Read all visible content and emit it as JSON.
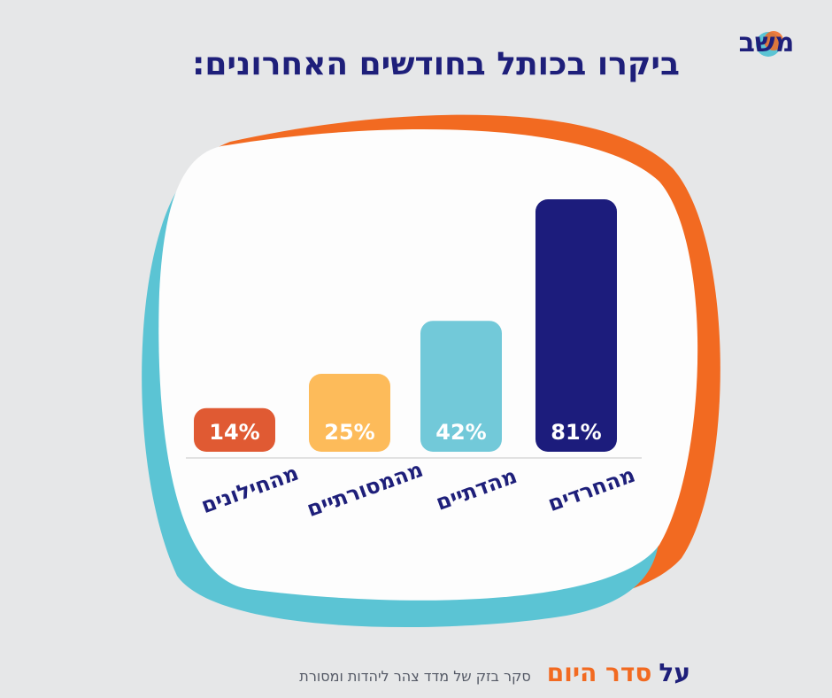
{
  "title": "ביקרו בכותל בחודשים האחרונים:",
  "logo": {
    "text": "משב",
    "colors": {
      "primary": "#1e1f7a",
      "orange": "#f26a21",
      "cyan": "#5bc4d4"
    }
  },
  "footer": {
    "prefix": "על",
    "highlight": "סדר היום",
    "survey": "סקר בזק של מדד צהר ליהדות ומסורת"
  },
  "colors": {
    "background": "#e6e7e8",
    "blob_orange": "#f26a21",
    "blob_cyan": "#5bc4d4",
    "title": "#1e1f7a"
  },
  "chart_data": {
    "type": "bar",
    "title": "ביקרו בכותל בחודשים האחרונים:",
    "xlabel": "",
    "ylabel": "",
    "ylim": [
      0,
      100
    ],
    "categories": [
      "מהחילונים",
      "מהמסורתיים",
      "מהדתיים",
      "מהחרדים"
    ],
    "values": [
      14,
      25,
      42,
      81
    ],
    "value_labels": [
      "14%",
      "25%",
      "42%",
      "81%"
    ],
    "bar_colors": [
      "#e05a33",
      "#fdbb5a",
      "#72c9d9",
      "#1c1c7c"
    ],
    "grid": false,
    "legend": "none"
  }
}
